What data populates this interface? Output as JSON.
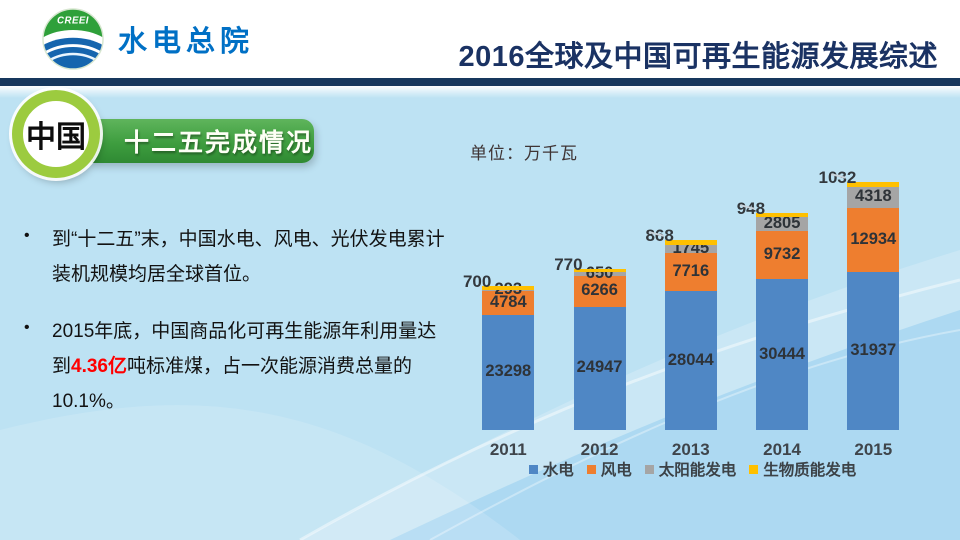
{
  "slide": {
    "header": {
      "logo_text": "CREEI",
      "org_name": "水电总院",
      "title": "2016全球及中国可再生能源发展综述"
    },
    "badge": {
      "circle_label": "中国",
      "ribbon_label": "十二五完成情况"
    },
    "unit_label": "单位：万千瓦",
    "bullets": [
      {
        "text": "到“十二五”末，中国水电、风电、光伏发电累计装机规模均居全球首位。"
      },
      {
        "prefix": "2015年底，中国商品化可再生能源年利用量达到",
        "highlight": "4.36亿",
        "suffix": "吨标准煤，占一次能源消费总量的10.1%。"
      }
    ]
  },
  "colors": {
    "background_blue": "#BDE2F3",
    "header_navy_bar": "#16375D",
    "title_navy": "#1A3263",
    "logo_blue": "#0070C5",
    "badge_ring_green": "#9CCB3F",
    "ribbon_green": "#3E9D3F",
    "highlight_red": "#FE0000",
    "hydro_blue": "#4F87C5",
    "wind_orange": "#EE7E2F",
    "solar_gray": "#A5A5A5",
    "biomass_yellow": "#FFC000"
  },
  "chart_data": {
    "type": "bar",
    "stacked": true,
    "title": "",
    "unit": "万千瓦",
    "categories": [
      "2011",
      "2012",
      "2013",
      "2014",
      "2015"
    ],
    "series": [
      {
        "name": "水电",
        "color": "#4F87C5",
        "label_position": "inside",
        "values": [
          23298,
          24947,
          28044,
          30444,
          31937
        ]
      },
      {
        "name": "风电",
        "color": "#EE7E2F",
        "label_position": "inside",
        "values": [
          4784,
          6266,
          7716,
          9732,
          12934
        ]
      },
      {
        "name": "太阳能发电",
        "color": "#A5A5A5",
        "label_position": "inside",
        "values": [
          293,
          650,
          1745,
          2805,
          4318
        ]
      },
      {
        "name": "生物质能发电",
        "color": "#FFC000",
        "label_position": "above-bar",
        "values": [
          700,
          770,
          868,
          948,
          1032
        ]
      }
    ],
    "totals": [
      29075,
      32633,
      38373,
      43929,
      50221
    ],
    "legend_position": "bottom",
    "y_axis_visible": false,
    "gridlines": false
  }
}
